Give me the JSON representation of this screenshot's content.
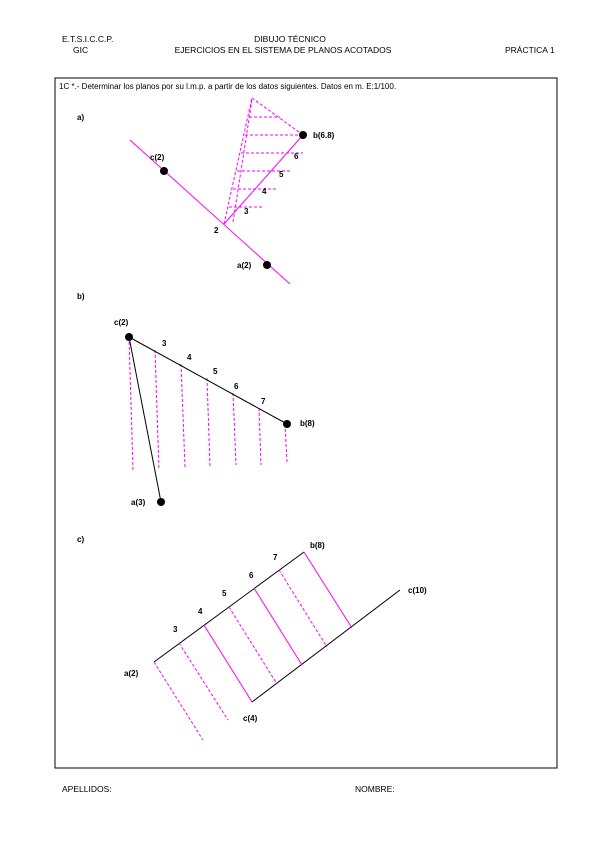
{
  "header": {
    "school": "E.T.S.I.C.C.P.",
    "group": "GIC",
    "subject": "DIBUJO TÉCNICO",
    "title": "EJERCICIOS EN EL SISTEMA DE PLANOS ACOTADOS",
    "practice": "PRÁCTICA 1"
  },
  "statement": "1C *.- Determinar los planos por su l.m.p. a partir de los datos siguientes. Datos en m. E:1/100.",
  "parts": [
    {
      "label": "a)",
      "points": [
        "c(2)",
        "a(2)",
        "b(6.8)",
        "2",
        "3",
        "4",
        "5",
        "6"
      ]
    },
    {
      "label": "b)",
      "points": [
        "c(2)",
        "3",
        "4",
        "5",
        "6",
        "7",
        "b(8)",
        "a(3)"
      ]
    },
    {
      "label": "c)",
      "points": [
        "b(8)",
        "7",
        "6",
        "5",
        "4",
        "3",
        "c(10)",
        "a(2)",
        "c(4)"
      ]
    }
  ],
  "footer": {
    "surname": "APELLIDOS:",
    "name": "NOMBRE:"
  }
}
